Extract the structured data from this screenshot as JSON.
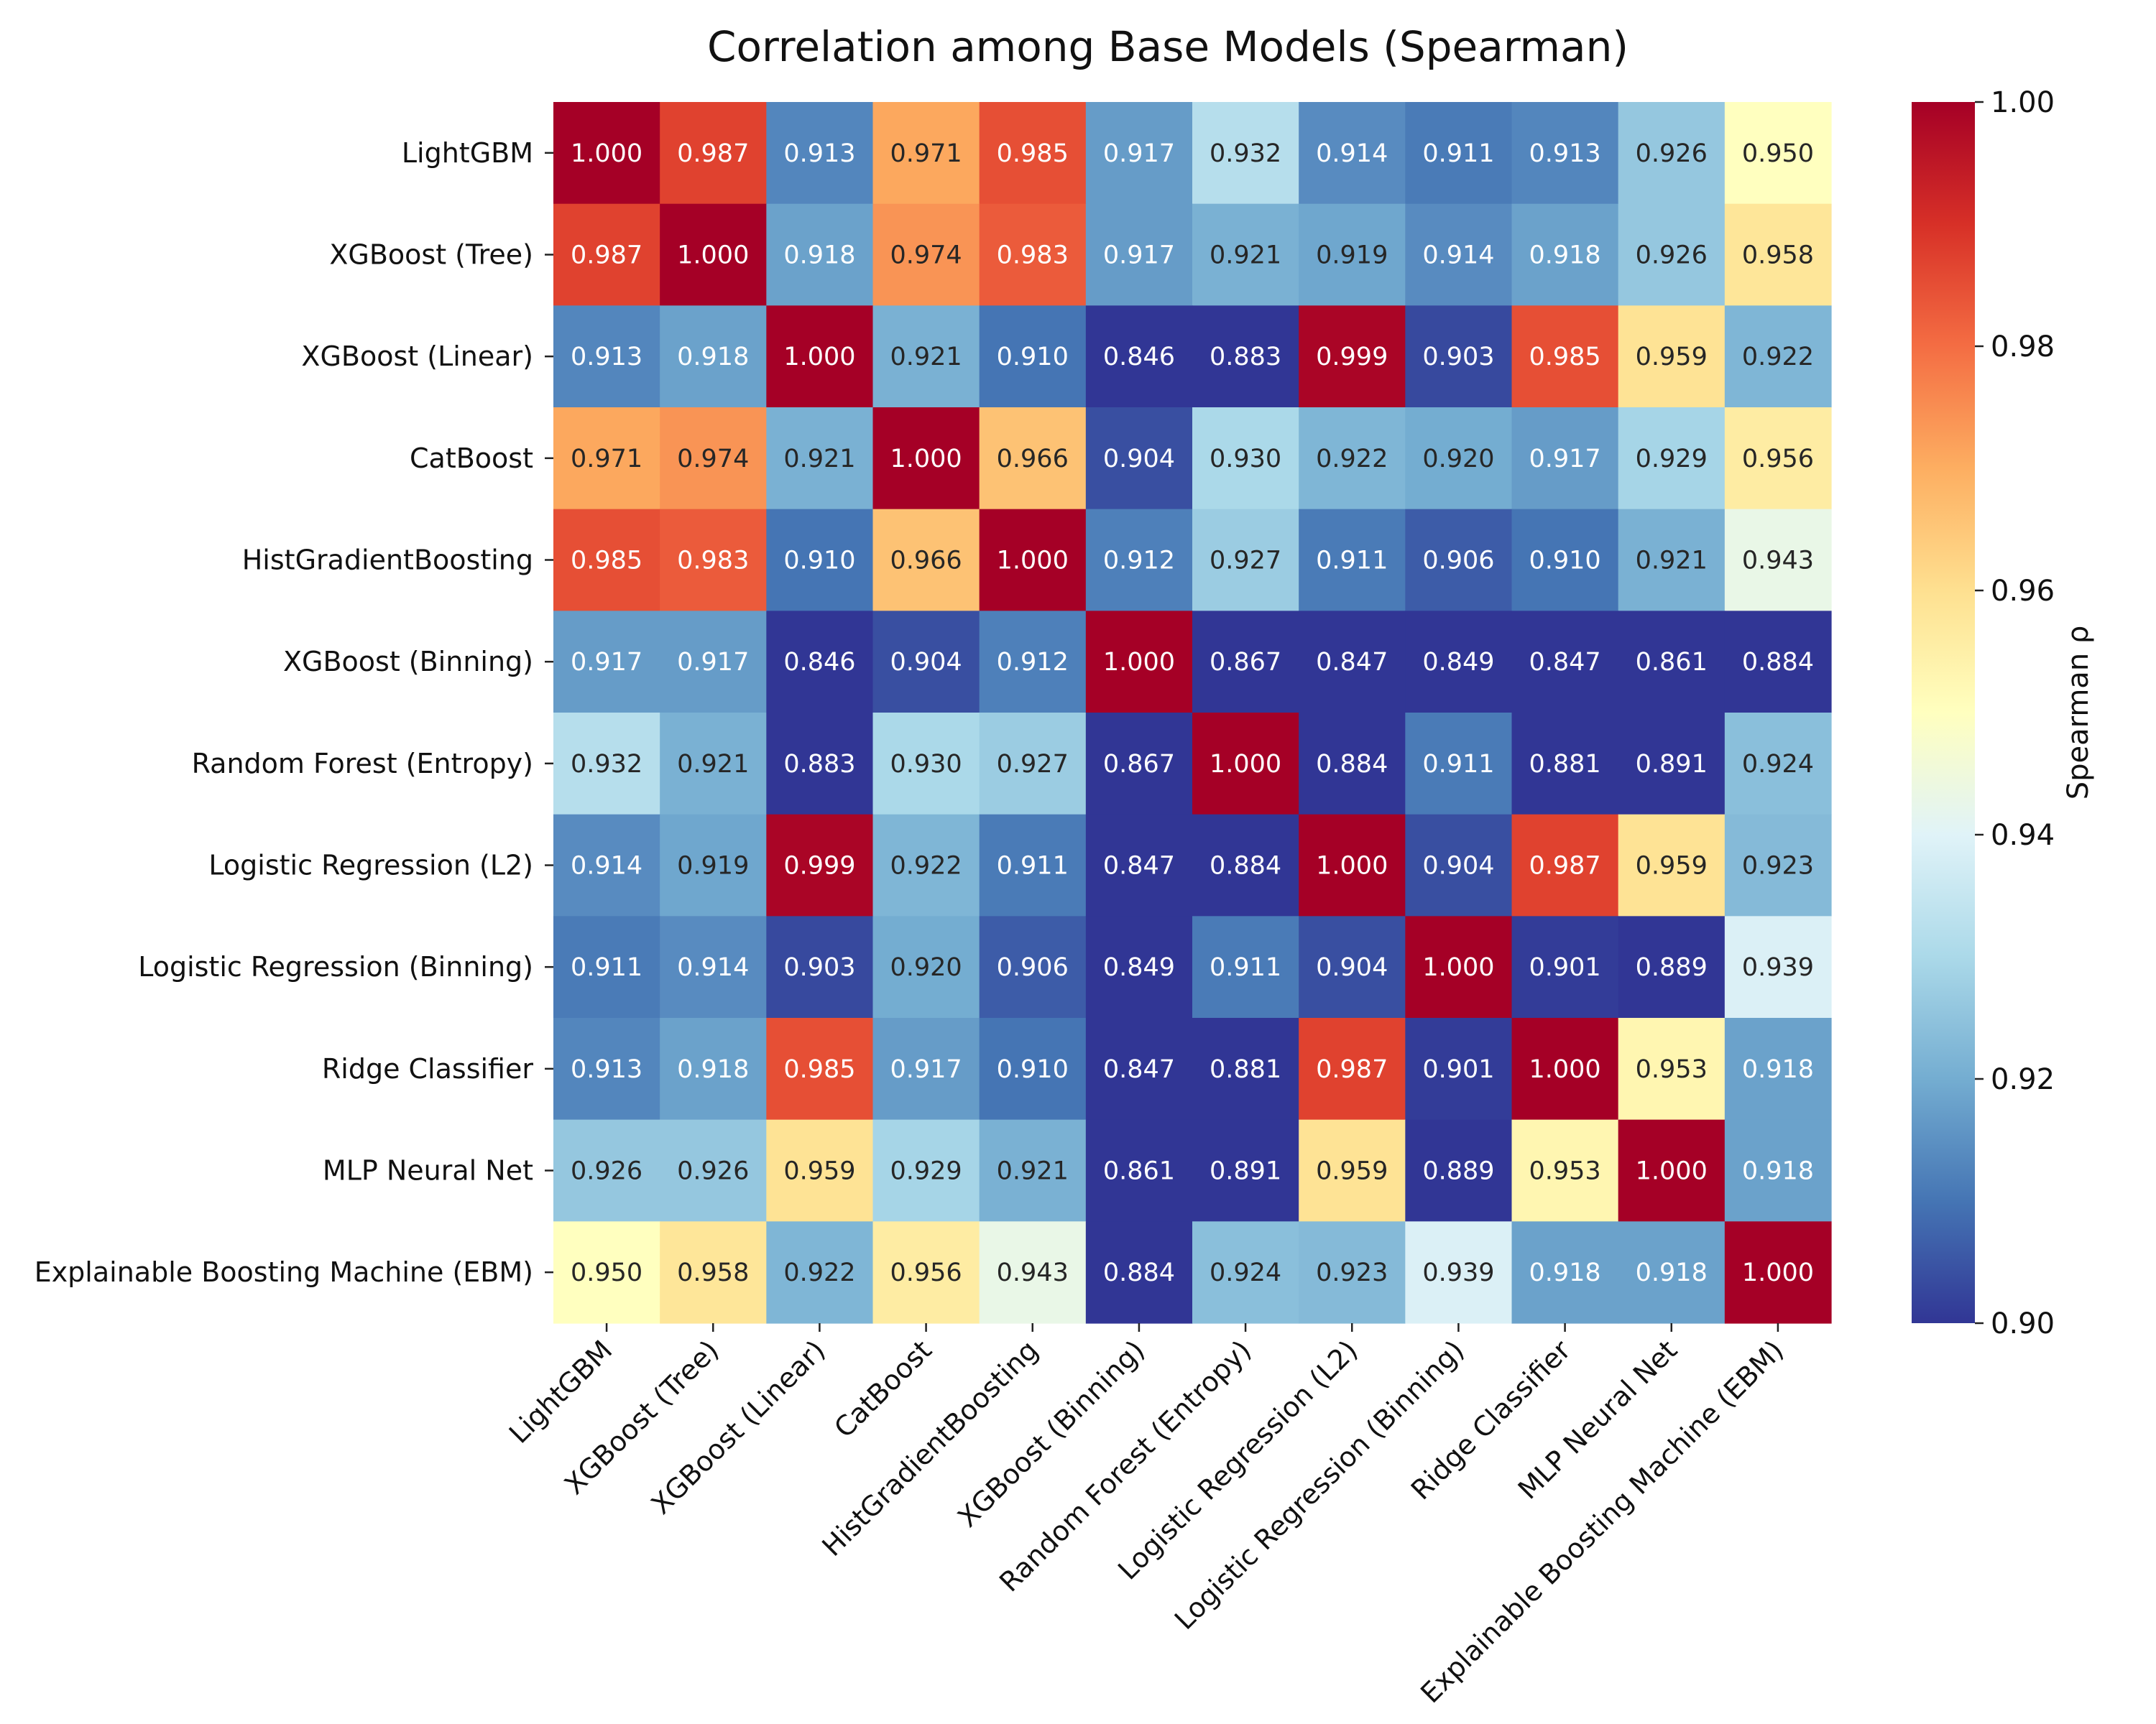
{
  "chart_data": {
    "type": "heatmap",
    "title": "Correlation among Base Models (Spearman)",
    "xlabel": "",
    "ylabel": "",
    "labels": [
      "LightGBM",
      "XGBoost (Tree)",
      "XGBoost (Linear)",
      "CatBoost",
      "HistGradientBoosting",
      "XGBoost (Binning)",
      "Random Forest (Entropy)",
      "Logistic Regression (L2)",
      "Logistic Regression (Binning)",
      "Ridge Classifier",
      "MLP Neural Net",
      "Explainable Boosting Machine (EBM)"
    ],
    "matrix": [
      [
        1.0,
        0.987,
        0.913,
        0.971,
        0.985,
        0.917,
        0.932,
        0.914,
        0.911,
        0.913,
        0.926,
        0.95
      ],
      [
        0.987,
        1.0,
        0.918,
        0.974,
        0.983,
        0.917,
        0.921,
        0.919,
        0.914,
        0.918,
        0.926,
        0.958
      ],
      [
        0.913,
        0.918,
        1.0,
        0.921,
        0.91,
        0.846,
        0.883,
        0.999,
        0.903,
        0.985,
        0.959,
        0.922
      ],
      [
        0.971,
        0.974,
        0.921,
        1.0,
        0.966,
        0.904,
        0.93,
        0.922,
        0.92,
        0.917,
        0.929,
        0.956
      ],
      [
        0.985,
        0.983,
        0.91,
        0.966,
        1.0,
        0.912,
        0.927,
        0.911,
        0.906,
        0.91,
        0.921,
        0.943
      ],
      [
        0.917,
        0.917,
        0.846,
        0.904,
        0.912,
        1.0,
        0.867,
        0.847,
        0.849,
        0.847,
        0.861,
        0.884
      ],
      [
        0.932,
        0.921,
        0.883,
        0.93,
        0.927,
        0.867,
        1.0,
        0.884,
        0.911,
        0.881,
        0.891,
        0.924
      ],
      [
        0.914,
        0.919,
        0.999,
        0.922,
        0.911,
        0.847,
        0.884,
        1.0,
        0.904,
        0.987,
        0.959,
        0.923
      ],
      [
        0.911,
        0.914,
        0.903,
        0.92,
        0.906,
        0.849,
        0.911,
        0.904,
        1.0,
        0.901,
        0.889,
        0.939
      ],
      [
        0.913,
        0.918,
        0.985,
        0.917,
        0.91,
        0.847,
        0.881,
        0.987,
        0.901,
        1.0,
        0.953,
        0.918
      ],
      [
        0.926,
        0.926,
        0.959,
        0.929,
        0.921,
        0.861,
        0.891,
        0.959,
        0.889,
        0.953,
        1.0,
        0.918
      ],
      [
        0.95,
        0.958,
        0.922,
        0.956,
        0.943,
        0.884,
        0.924,
        0.923,
        0.939,
        0.918,
        0.918,
        1.0
      ]
    ],
    "value_format": "3 decimals",
    "colormap": "RdYlBu_r",
    "color_stops": [
      "#313695",
      "#4575b4",
      "#74add1",
      "#abd9e9",
      "#e0f3f8",
      "#ffffbf",
      "#fee090",
      "#fdae61",
      "#f46d43",
      "#d73027",
      "#a50026"
    ],
    "vmin": 0.9,
    "vmax": 1.0,
    "colorbar": {
      "label": "Spearman ρ",
      "ticks": [
        0.9,
        0.92,
        0.94,
        0.96,
        0.98,
        1.0
      ],
      "tick_labels": [
        "0.90",
        "0.92",
        "0.94",
        "0.96",
        "0.98",
        "1.00"
      ]
    },
    "grid": false,
    "x_tick_rotation": "45 degrees"
  }
}
